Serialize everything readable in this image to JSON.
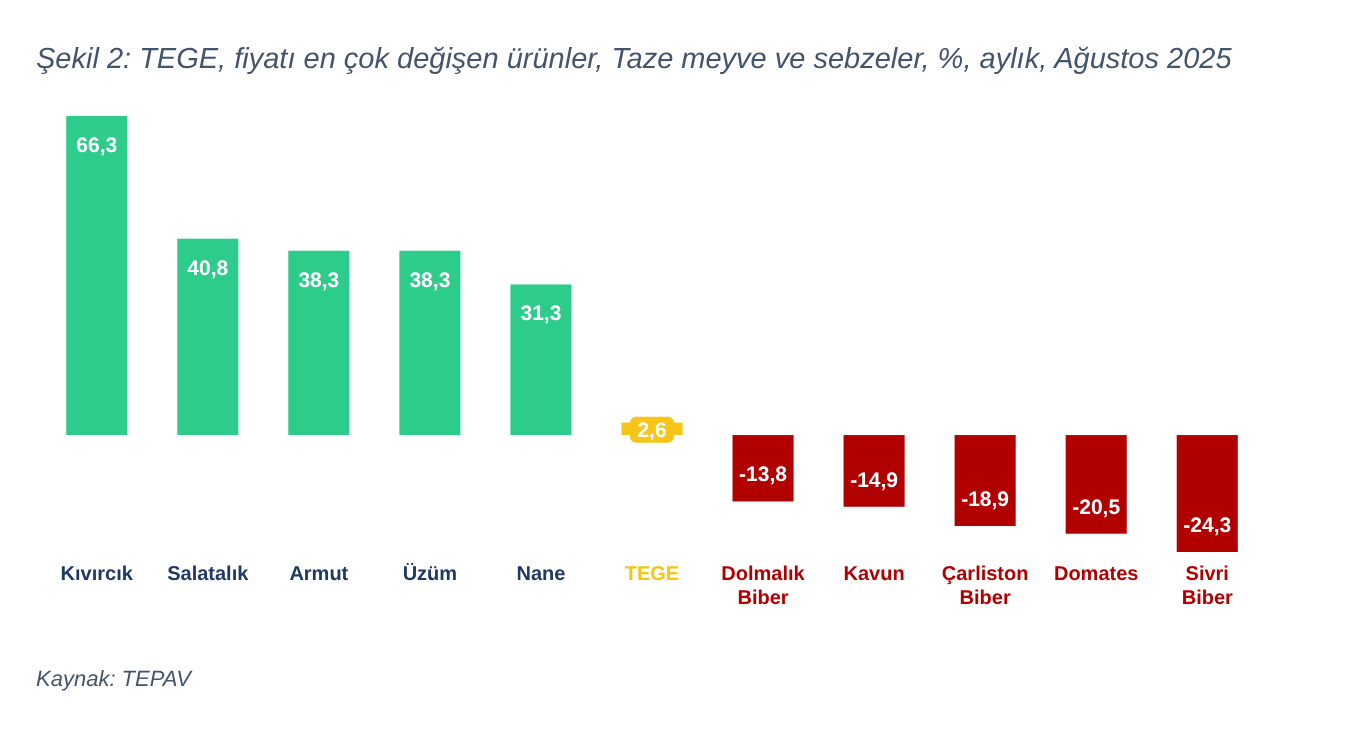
{
  "chart_data": {
    "type": "bar",
    "title": "Şekil 2: TEGE, fiyatı en çok değişen ürünler, Taze meyve ve sebzeler, %, aylık, Ağustos 2025",
    "categories": [
      "Kıvırcık",
      "Salatalık",
      "Armut",
      "Üzüm",
      "Nane",
      "TEGE",
      "Dolmalık Biber",
      "Kavun",
      "Çarliston Biber",
      "Domates",
      "Sivri Biber"
    ],
    "values": [
      66.3,
      40.8,
      38.3,
      38.3,
      31.3,
      2.6,
      -13.8,
      -14.9,
      -18.9,
      -20.5,
      -24.3
    ],
    "colors": [
      "#2ecc8a",
      "#2ecc8a",
      "#2ecc8a",
      "#2ecc8a",
      "#2ecc8a",
      "#f5c518",
      "#b00000",
      "#b00000",
      "#b00000",
      "#b00000",
      "#b00000"
    ],
    "value_labels": [
      "66,3",
      "40,8",
      "38,3",
      "38,3",
      "31,3",
      "2,6",
      "-13,8",
      "-14,9",
      "-18,9",
      "-20,5",
      "-24,3"
    ],
    "annotations": [
      "Kaynak: TEPAV"
    ]
  }
}
